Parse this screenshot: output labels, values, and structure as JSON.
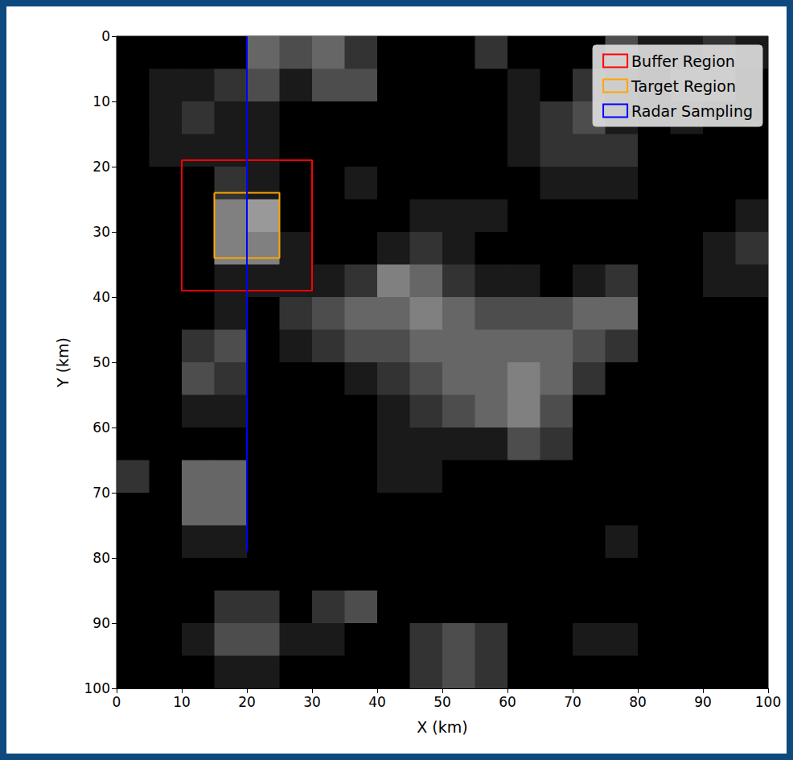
{
  "chart_data": {
    "type": "image",
    "xlabel": "X (km)",
    "ylabel": "Y (km)",
    "xlim": [
      0,
      100
    ],
    "ylim": [
      100,
      0
    ],
    "xticks": [
      0,
      10,
      20,
      30,
      40,
      50,
      60,
      70,
      80,
      90,
      100
    ],
    "yticks": [
      0,
      10,
      20,
      30,
      40,
      50,
      60,
      70,
      80,
      90,
      100
    ],
    "legend": "upper right",
    "series": [
      {
        "name": "Buffer Region",
        "type": "rectangle",
        "color": "#ff0000",
        "x": [
          10,
          30
        ],
        "y": [
          19,
          39
        ]
      },
      {
        "name": "Target Region",
        "type": "rectangle",
        "color": "#ffa500",
        "x": [
          15,
          25
        ],
        "y": [
          24,
          34
        ]
      },
      {
        "name": "Radar Sampling",
        "type": "line",
        "color": "#0000ff",
        "x": [
          20,
          20
        ],
        "y": [
          0,
          79
        ]
      }
    ],
    "brightness": [
      [
        0,
        0,
        0,
        0,
        0.4,
        0.3,
        0.4,
        0.2,
        0,
        0,
        0,
        0.2,
        0,
        0,
        0,
        0.3,
        0.1,
        0.1,
        0.2,
        0.1
      ],
      [
        0,
        0.1,
        0.1,
        0.2,
        0.3,
        0.1,
        0.3,
        0.3,
        0,
        0,
        0,
        0,
        0.1,
        0,
        0.2,
        0.1,
        0,
        0.2,
        0.2,
        0
      ],
      [
        0,
        0.1,
        0.2,
        0.1,
        0.1,
        0,
        0,
        0,
        0,
        0,
        0,
        0,
        0.1,
        0.2,
        0.3,
        0.1,
        0,
        0.1,
        0,
        0
      ],
      [
        0,
        0.1,
        0.1,
        0.1,
        0.1,
        0,
        0,
        0,
        0,
        0,
        0,
        0,
        0.1,
        0.2,
        0.2,
        0.2,
        0,
        0,
        0,
        0
      ],
      [
        0,
        0,
        0,
        0.2,
        0.1,
        0,
        0,
        0.1,
        0,
        0,
        0,
        0,
        0,
        0.1,
        0.1,
        0.1,
        0,
        0,
        0,
        0
      ],
      [
        0,
        0,
        0,
        0.5,
        0.6,
        0,
        0,
        0,
        0,
        0.1,
        0.1,
        0.1,
        0,
        0,
        0,
        0,
        0,
        0,
        0,
        0.1
      ],
      [
        0,
        0,
        0,
        0.5,
        0.5,
        0.1,
        0,
        0,
        0.1,
        0.2,
        0.1,
        0,
        0,
        0,
        0,
        0,
        0,
        0,
        0.1,
        0.2
      ],
      [
        0,
        0,
        0,
        0.1,
        0.1,
        0.1,
        0.1,
        0.2,
        0.5,
        0.4,
        0.2,
        0.1,
        0.1,
        0,
        0.1,
        0.2,
        0,
        0,
        0.1,
        0.1
      ],
      [
        0,
        0,
        0,
        0.1,
        0,
        0.2,
        0.3,
        0.4,
        0.4,
        0.5,
        0.4,
        0.3,
        0.3,
        0.3,
        0.4,
        0.4,
        0,
        0,
        0,
        0
      ],
      [
        0,
        0,
        0.2,
        0.3,
        0,
        0.1,
        0.2,
        0.3,
        0.3,
        0.4,
        0.4,
        0.4,
        0.4,
        0.4,
        0.3,
        0.2,
        0,
        0,
        0,
        0
      ],
      [
        0,
        0,
        0.3,
        0.2,
        0,
        0,
        0,
        0.1,
        0.2,
        0.3,
        0.4,
        0.4,
        0.5,
        0.4,
        0.2,
        0,
        0,
        0,
        0,
        0
      ],
      [
        0,
        0,
        0.1,
        0.1,
        0,
        0,
        0,
        0,
        0.1,
        0.2,
        0.3,
        0.4,
        0.5,
        0.3,
        0,
        0,
        0,
        0,
        0,
        0
      ],
      [
        0,
        0,
        0,
        0,
        0,
        0,
        0,
        0,
        0.1,
        0.1,
        0.1,
        0.1,
        0.3,
        0.2,
        0,
        0,
        0,
        0,
        0,
        0
      ],
      [
        0.2,
        0,
        0.4,
        0.4,
        0,
        0,
        0,
        0,
        0.1,
        0.1,
        0,
        0,
        0,
        0,
        0,
        0,
        0,
        0,
        0,
        0
      ],
      [
        0,
        0,
        0.4,
        0.4,
        0,
        0,
        0,
        0,
        0,
        0,
        0,
        0,
        0,
        0,
        0,
        0,
        0,
        0,
        0,
        0
      ],
      [
        0,
        0,
        0.1,
        0.1,
        0,
        0,
        0,
        0,
        0,
        0,
        0,
        0,
        0,
        0,
        0,
        0.1,
        0,
        0,
        0,
        0
      ],
      [
        0,
        0,
        0,
        0,
        0,
        0,
        0,
        0,
        0,
        0,
        0,
        0,
        0,
        0,
        0,
        0,
        0,
        0,
        0,
        0
      ],
      [
        0,
        0,
        0,
        0.2,
        0.2,
        0,
        0.2,
        0.3,
        0,
        0,
        0,
        0,
        0,
        0,
        0,
        0,
        0,
        0,
        0,
        0
      ],
      [
        0,
        0,
        0.1,
        0.3,
        0.3,
        0.1,
        0.1,
        0,
        0,
        0.2,
        0.3,
        0.2,
        0,
        0,
        0.1,
        0.1,
        0,
        0,
        0,
        0
      ],
      [
        0,
        0,
        0,
        0.1,
        0.1,
        0,
        0,
        0,
        0,
        0.2,
        0.3,
        0.2,
        0,
        0,
        0,
        0,
        0,
        0,
        0,
        0
      ]
    ]
  }
}
